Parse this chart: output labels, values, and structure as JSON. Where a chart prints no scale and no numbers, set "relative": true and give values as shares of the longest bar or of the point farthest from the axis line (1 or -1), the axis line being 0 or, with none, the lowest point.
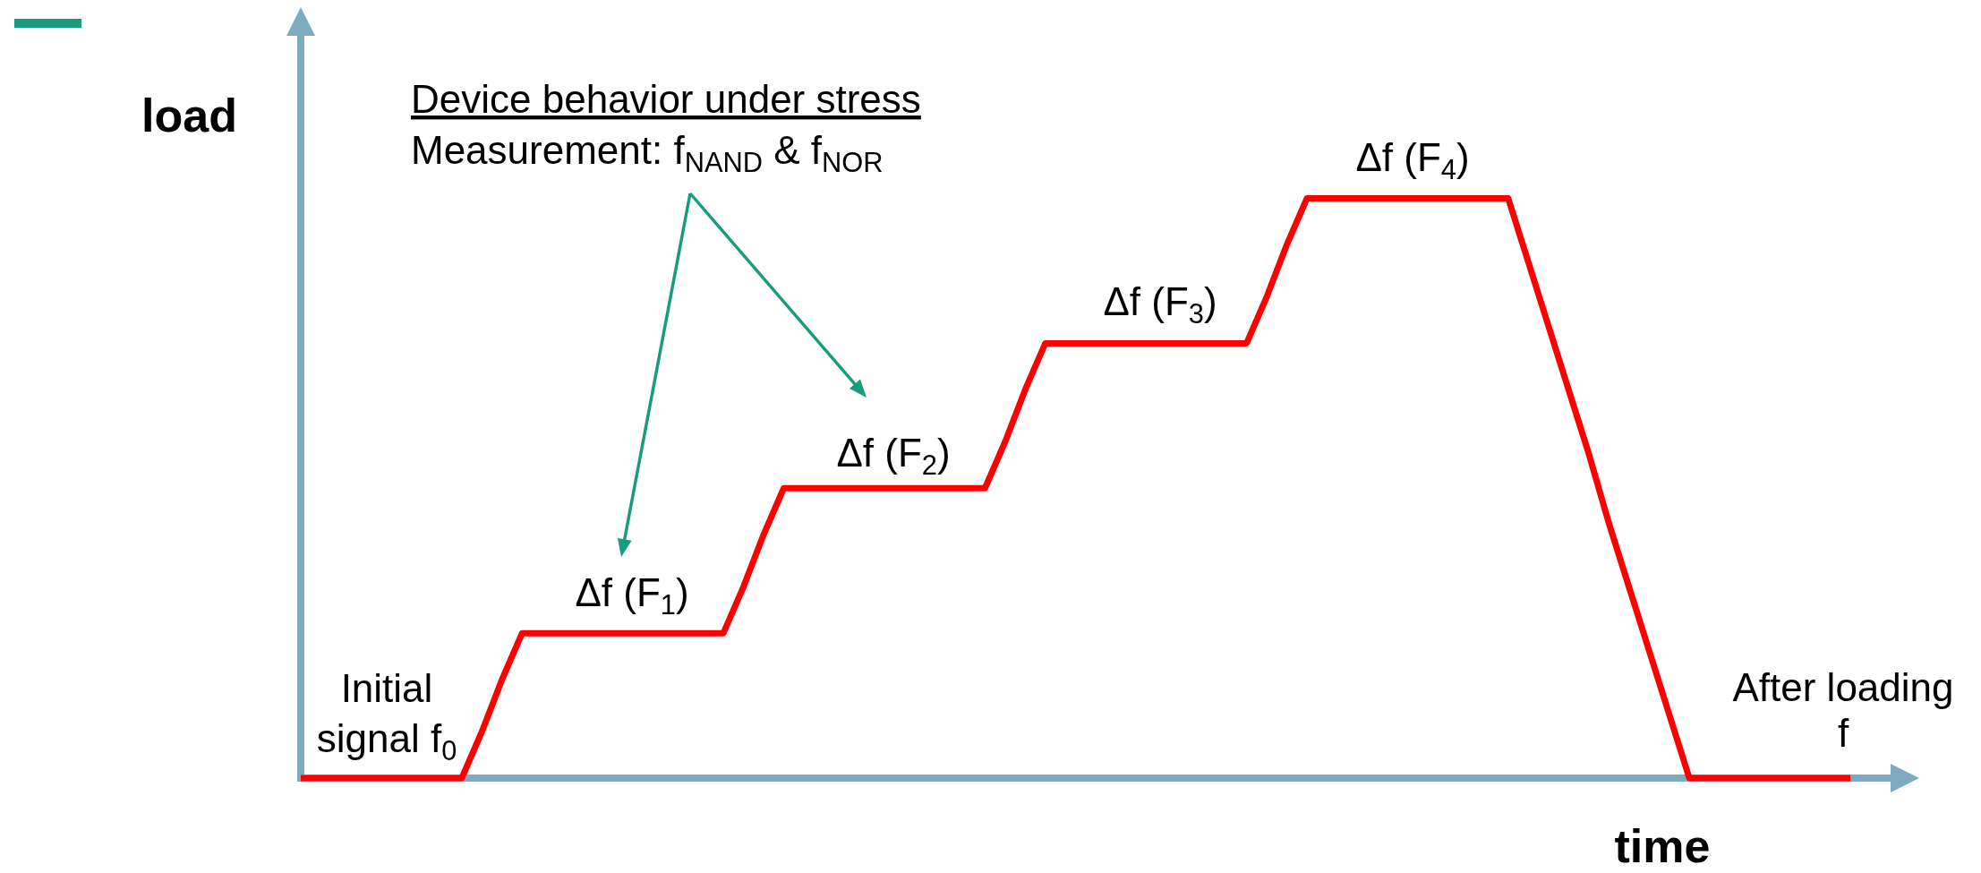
{
  "chart_data": {
    "type": "line",
    "relative": true,
    "xlabel": "time",
    "ylabel": "load",
    "categories": [
      null,
      null,
      null,
      null,
      null,
      null,
      null,
      null,
      null,
      null,
      null,
      null,
      null,
      null,
      null,
      null,
      null,
      null,
      null,
      null,
      null,
      null,
      null,
      null,
      null,
      null,
      null,
      null,
      null,
      null,
      null,
      null,
      null,
      null,
      null,
      null,
      null,
      null,
      null,
      null,
      null,
      null,
      null,
      null,
      null,
      null,
      null,
      null,
      null,
      null,
      null,
      null,
      null,
      null,
      null,
      null,
      null,
      null,
      null,
      null,
      null,
      null,
      null,
      null,
      null,
      null,
      null,
      null,
      null,
      null,
      null,
      null,
      null,
      null,
      null,
      null,
      null,
      null
    ],
    "series": [
      {
        "color": "#ff0000",
        "values": [
          0,
          0,
          0,
          0,
          0,
          0,
          0,
          0,
          0,
          0.08,
          0.17,
          0.25,
          0.25,
          0.25,
          0.25,
          0.25,
          0.25,
          0.25,
          0.25,
          0.25,
          0.25,
          0.25,
          0.33,
          0.42,
          0.5,
          0.5,
          0.5,
          0.5,
          0.5,
          0.5,
          0.5,
          0.5,
          0.5,
          0.5,
          0.5,
          0.58,
          0.67,
          0.75,
          0.75,
          0.75,
          0.75,
          0.75,
          0.75,
          0.75,
          0.75,
          0.75,
          0.75,
          0.75,
          0.83,
          0.92,
          1,
          1,
          1,
          1,
          1,
          1,
          1,
          1,
          1,
          1,
          1,
          0.89,
          0.78,
          0.67,
          0.56,
          0.44,
          0.33,
          0.22,
          0.11,
          0,
          0,
          0,
          0,
          0,
          0,
          0,
          0,
          0
        ]
      }
    ],
    "annotations": [
      "Device behavior under stress",
      "Measurement: f$_{NAND}$ & f$_{NOR}$",
      "Initial signal f$_{0}$",
      "Δf (F$_{1}$)",
      "Δf (F$_{2}$)",
      "Δf (F$_{3}$)",
      "Δf (F$_{4}$)",
      "After loading f"
    ]
  }
}
